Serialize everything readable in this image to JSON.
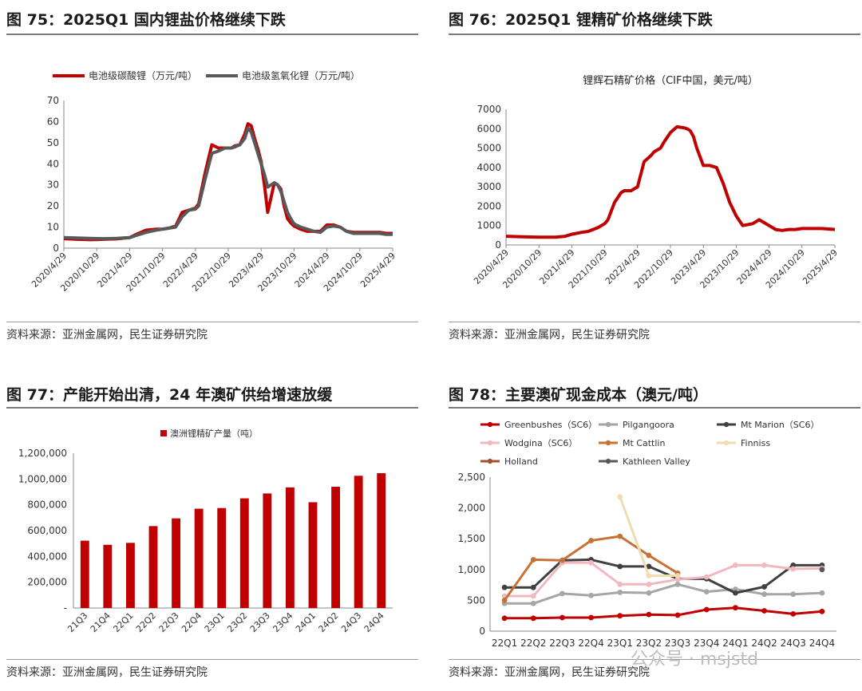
{
  "panels": {
    "p75": {
      "title": "图 75：2025Q1 国内锂盐价格继续下跌",
      "source": "资料来源：亚洲金属网，民生证券研究院"
    },
    "p76": {
      "title": "图 76：2025Q1 锂精矿价格继续下跌",
      "source": "资料来源：亚洲金属网，民生证券研究院"
    },
    "p77": {
      "title": "图 77：产能开始出清，24 年澳矿供给增速放缓",
      "source": "资料来源：亚洲金属网，民生证券研究院"
    },
    "p78": {
      "title": "图 78：主要澳矿现金成本（澳元/吨）",
      "source": "资料来源：亚洲金属网，民生证券研究院"
    }
  },
  "watermark": "公众号 · msjstd",
  "chart_data": [
    {
      "id": "c75",
      "type": "line",
      "title": "",
      "legend_position": "top",
      "x_ticks": [
        "2020/4/29",
        "2020/10/29",
        "2021/4/29",
        "2021/10/29",
        "2022/4/29",
        "2022/10/29",
        "2023/4/29",
        "2023/10/29",
        "2024/4/29",
        "2024/10/29",
        "2025/4/29"
      ],
      "ylim": [
        0,
        70
      ],
      "y_ticks": [
        0,
        10,
        20,
        30,
        40,
        50,
        60,
        70
      ],
      "series": [
        {
          "name": "电池级碳酸锂（万元/吨）",
          "color": "#c00000",
          "x": [
            0,
            0.4,
            0.8,
            1.2,
            1.6,
            2.0,
            2.2,
            2.5,
            2.8,
            3.0,
            3.2,
            3.4,
            3.6,
            3.8,
            4.0,
            4.1,
            4.3,
            4.5,
            4.7,
            4.9,
            5.0,
            5.1,
            5.2,
            5.35,
            5.5,
            5.6,
            5.7,
            5.8,
            5.9,
            6.0,
            6.1,
            6.2,
            6.3,
            6.4,
            6.5,
            6.6,
            6.7,
            6.8,
            6.9,
            7.0,
            7.2,
            7.4,
            7.6,
            7.8,
            8.0,
            8.2,
            8.4,
            8.6,
            8.8,
            9.0,
            9.2,
            9.4,
            9.6,
            9.8,
            10.0
          ],
          "y": [
            4.5,
            4.2,
            4.0,
            4.2,
            4.4,
            5.0,
            6.5,
            8.5,
            9.0,
            9.0,
            9.5,
            10.5,
            17,
            18,
            19,
            21,
            36,
            49,
            47.5,
            47.5,
            47.5,
            47.5,
            48.5,
            49,
            54,
            59,
            58,
            52,
            47,
            41,
            30,
            17,
            24,
            31,
            30,
            28,
            20,
            14,
            12,
            10.5,
            9,
            8,
            8,
            8,
            11,
            11,
            10,
            8,
            7.5,
            7.5,
            7.5,
            7.5,
            7.5,
            7.0,
            7.0
          ]
        },
        {
          "name": "电池级氢氧化锂（万元/吨）",
          "color": "#595959",
          "x": [
            0,
            0.4,
            0.8,
            1.2,
            1.6,
            2.0,
            2.2,
            2.5,
            2.8,
            3.0,
            3.2,
            3.4,
            3.6,
            3.8,
            4.0,
            4.1,
            4.3,
            4.5,
            4.7,
            4.9,
            5.0,
            5.1,
            5.2,
            5.35,
            5.5,
            5.6,
            5.7,
            5.8,
            5.9,
            6.0,
            6.1,
            6.2,
            6.3,
            6.4,
            6.5,
            6.6,
            6.7,
            6.8,
            6.9,
            7.0,
            7.2,
            7.4,
            7.6,
            7.8,
            8.0,
            8.2,
            8.4,
            8.6,
            8.8,
            9.0,
            9.2,
            9.4,
            9.6,
            9.8,
            10.0
          ],
          "y": [
            5.0,
            4.8,
            4.6,
            4.5,
            4.6,
            5.0,
            6.0,
            7.5,
            8.5,
            9.0,
            9.5,
            10.0,
            15,
            18,
            18.5,
            20,
            33,
            45,
            46,
            47.5,
            47.5,
            47.5,
            48,
            49,
            52,
            57,
            55,
            50,
            45,
            40,
            35,
            29,
            30,
            31,
            30,
            27,
            22,
            17,
            14,
            11.5,
            10.0,
            9.0,
            8.0,
            7.5,
            10.0,
            10.5,
            10.0,
            8.0,
            7.0,
            7.0,
            7.0,
            7.0,
            7.0,
            6.5,
            6.5
          ]
        }
      ]
    },
    {
      "id": "c76",
      "type": "line",
      "title": "锂辉石精矿价格（CIF中国，美元/吨）",
      "x_ticks": [
        "2020/4/29",
        "2020/10/29",
        "2021/4/29",
        "2021/10/29",
        "2022/4/29",
        "2022/10/29",
        "2023/4/29",
        "2023/10/29",
        "2024/4/29",
        "2024/10/29",
        "2025/4/29"
      ],
      "ylim": [
        0,
        7000
      ],
      "y_ticks": [
        0,
        1000,
        2000,
        3000,
        4000,
        5000,
        6000,
        7000
      ],
      "series": [
        {
          "name": "锂辉石精矿价格（CIF中国，美元/吨）",
          "color": "#c00000",
          "x": [
            0,
            0.5,
            1.0,
            1.5,
            1.8,
            2.0,
            2.3,
            2.5,
            2.8,
            3.0,
            3.1,
            3.3,
            3.5,
            3.6,
            3.8,
            4.0,
            4.2,
            4.4,
            4.5,
            4.7,
            4.8,
            5.0,
            5.2,
            5.4,
            5.5,
            5.6,
            5.7,
            5.8,
            6.0,
            6.2,
            6.4,
            6.6,
            6.8,
            7.0,
            7.2,
            7.5,
            7.7,
            7.8,
            8.0,
            8.2,
            8.4,
            8.6,
            8.8,
            9.0,
            9.3,
            9.6,
            10.0
          ],
          "y": [
            450,
            420,
            400,
            400,
            450,
            550,
            650,
            700,
            900,
            1100,
            1300,
            2200,
            2700,
            2800,
            2800,
            3000,
            4300,
            4600,
            4800,
            5000,
            5300,
            5800,
            6100,
            6050,
            6000,
            5900,
            5600,
            5000,
            4100,
            4100,
            4000,
            3200,
            2200,
            1500,
            1000,
            1100,
            1300,
            1200,
            1000,
            800,
            750,
            800,
            800,
            850,
            850,
            850,
            800
          ]
        }
      ]
    },
    {
      "id": "c77",
      "type": "bar",
      "title": "",
      "legend_position": "top",
      "categories": [
        "21Q3",
        "21Q4",
        "22Q1",
        "22Q2",
        "22Q3",
        "22Q4",
        "23Q1",
        "23Q2",
        "23Q3",
        "23Q4",
        "24Q1",
        "24Q2",
        "24Q3",
        "24Q4"
      ],
      "ylim": [
        0,
        1200000
      ],
      "y_ticks": [
        0,
        200000,
        400000,
        600000,
        800000,
        1000000,
        1200000
      ],
      "y_tick_labels": [
        "-",
        "200,000",
        "400,000",
        "600,000",
        "800,000",
        "1,000,000",
        "1,200,000"
      ],
      "series": [
        {
          "name": "澳洲锂精矿产量（吨）",
          "color": "#c00000",
          "values": [
            522000,
            490000,
            505000,
            635000,
            695000,
            770000,
            775000,
            850000,
            888000,
            935000,
            820000,
            940000,
            1025000,
            1045000
          ]
        }
      ]
    },
    {
      "id": "c78",
      "type": "line",
      "title": "",
      "legend_position": "top",
      "categories": [
        "22Q1",
        "22Q2",
        "22Q3",
        "22Q4",
        "23Q1",
        "23Q2",
        "23Q3",
        "23Q4",
        "24Q1",
        "24Q2",
        "24Q3",
        "24Q4"
      ],
      "ylim": [
        0,
        2500
      ],
      "y_ticks": [
        0,
        500,
        1000,
        1500,
        2000,
        2500
      ],
      "y_tick_labels": [
        "0",
        "500",
        "1,000",
        "1,500",
        "2,000",
        "2,500"
      ],
      "series": [
        {
          "name": "Greenbushes（SC6）",
          "color": "#c00000",
          "x": [
            0,
            1,
            2,
            3,
            4,
            5,
            6,
            7,
            8,
            9,
            10,
            11
          ],
          "values": [
            210,
            210,
            220,
            220,
            250,
            270,
            260,
            350,
            380,
            330,
            280,
            320
          ]
        },
        {
          "name": "Pilgangoora",
          "color": "#a6a6a6",
          "x": [
            0,
            1,
            2,
            3,
            4,
            5,
            6,
            7,
            8,
            9,
            10,
            11
          ],
          "values": [
            450,
            450,
            610,
            580,
            630,
            620,
            760,
            640,
            680,
            600,
            600,
            620
          ]
        },
        {
          "name": "Mt Marion（SC6）",
          "color": "#404040",
          "x": [
            0,
            1,
            2,
            3,
            4,
            5,
            6,
            7,
            8,
            9,
            10,
            11
          ],
          "values": [
            710,
            710,
            1150,
            1160,
            1050,
            1050,
            850,
            850,
            620,
            720,
            1070,
            1070
          ]
        },
        {
          "name": "Wodgina（SC6）",
          "color": "#f2b8c0",
          "x": [
            0,
            1,
            2,
            3,
            4,
            5,
            6,
            7,
            8,
            9,
            10,
            11
          ],
          "values": [
            570,
            570,
            1110,
            1110,
            760,
            760,
            840,
            880,
            1070,
            1070,
            1010,
            1020
          ]
        },
        {
          "name": "Mt Cattlin",
          "color": "#c87137",
          "x": [
            0,
            1,
            2,
            3,
            4,
            5,
            6
          ],
          "values": [
            500,
            1160,
            1150,
            1470,
            1540,
            1230,
            940
          ]
        },
        {
          "name": "Finniss",
          "color": "#efdcb0",
          "x": [
            4,
            5,
            6
          ],
          "values": [
            2180,
            900,
            900
          ]
        },
        {
          "name": "Holland",
          "color": "#a0522d",
          "x": [],
          "values": []
        },
        {
          "name": "Kathleen Valley",
          "color": "#595959",
          "x": [
            11
          ],
          "values": [
            1000
          ]
        }
      ]
    }
  ]
}
